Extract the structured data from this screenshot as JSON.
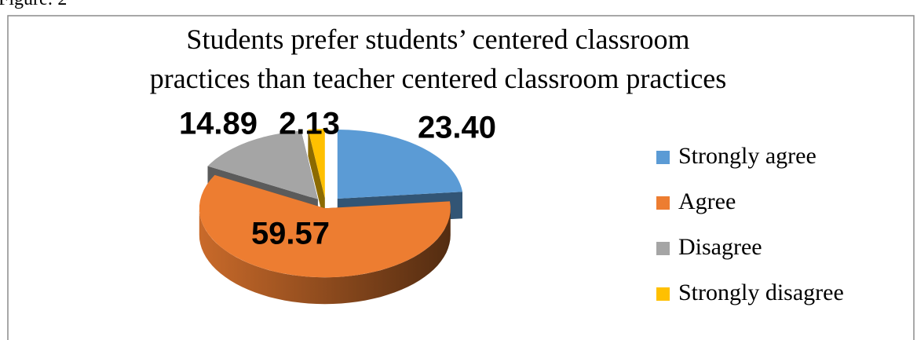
{
  "caption": "Figure: 2",
  "chart_data": {
    "type": "pie3d",
    "title": [
      "Students prefer students’ centered classroom",
      "practices than teacher centered classroom practices"
    ],
    "categories": [
      "Strongly agree",
      "Agree",
      "Disagree",
      "Strongly disagree"
    ],
    "values": [
      23.4,
      59.57,
      14.89,
      2.13
    ],
    "value_labels": [
      "23.40",
      "59.57",
      "14.89",
      "2.13"
    ],
    "colors": [
      "#5b9bd5",
      "#ed7d31",
      "#a5a5a5",
      "#ffc000"
    ],
    "legend": "right"
  }
}
